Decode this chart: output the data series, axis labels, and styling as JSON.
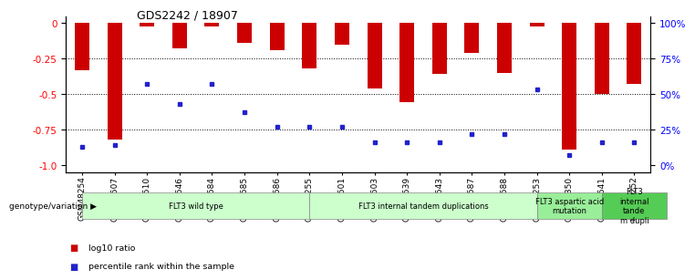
{
  "title": "GDS2242 / 18907",
  "samples": [
    "GSM48254",
    "GSM48507",
    "GSM48510",
    "GSM48546",
    "GSM48584",
    "GSM48585",
    "GSM48586",
    "GSM48255",
    "GSM48501",
    "GSM48503",
    "GSM48539",
    "GSM48543",
    "GSM48587",
    "GSM48588",
    "GSM48253",
    "GSM48350",
    "GSM48541",
    "GSM48252"
  ],
  "log10_ratio": [
    -0.33,
    -0.82,
    -0.02,
    -0.18,
    -0.02,
    -0.14,
    -0.19,
    -0.32,
    -0.15,
    -0.46,
    -0.56,
    -0.36,
    -0.21,
    -0.35,
    -0.02,
    -0.89,
    -0.5,
    -0.43
  ],
  "percentile_rank_pct": [
    13,
    14,
    57,
    43,
    57,
    37,
    27,
    27,
    27,
    16,
    16,
    16,
    22,
    22,
    53,
    7,
    16,
    16
  ],
  "bar_color": "#cc0000",
  "dot_color": "#2222cc",
  "groups": [
    {
      "label": "FLT3 wild type",
      "start": 0,
      "end": 7,
      "color": "#ccffcc"
    },
    {
      "label": "FLT3 internal tandem duplications",
      "start": 7,
      "end": 14,
      "color": "#ccffcc"
    },
    {
      "label": "FLT3 aspartic acid\nmutation",
      "start": 14,
      "end": 16,
      "color": "#99ee99"
    },
    {
      "label": "FLT3\ninternal\ntande\nm dupli",
      "start": 16,
      "end": 18,
      "color": "#55cc55"
    }
  ],
  "ylim": [
    -1.05,
    0.05
  ],
  "yticks_left": [
    0,
    -0.25,
    -0.5,
    -0.75,
    -1.0
  ],
  "yticks_right_pct": [
    100,
    75,
    50,
    25,
    0
  ],
  "yticks_right_pos": [
    0,
    -0.25,
    -0.5,
    -0.75,
    -1.0
  ],
  "genotype_label": "genotype/variation",
  "legend_items": [
    {
      "label": "log10 ratio",
      "color": "#cc0000"
    },
    {
      "label": "percentile rank within the sample",
      "color": "#2222cc"
    }
  ]
}
